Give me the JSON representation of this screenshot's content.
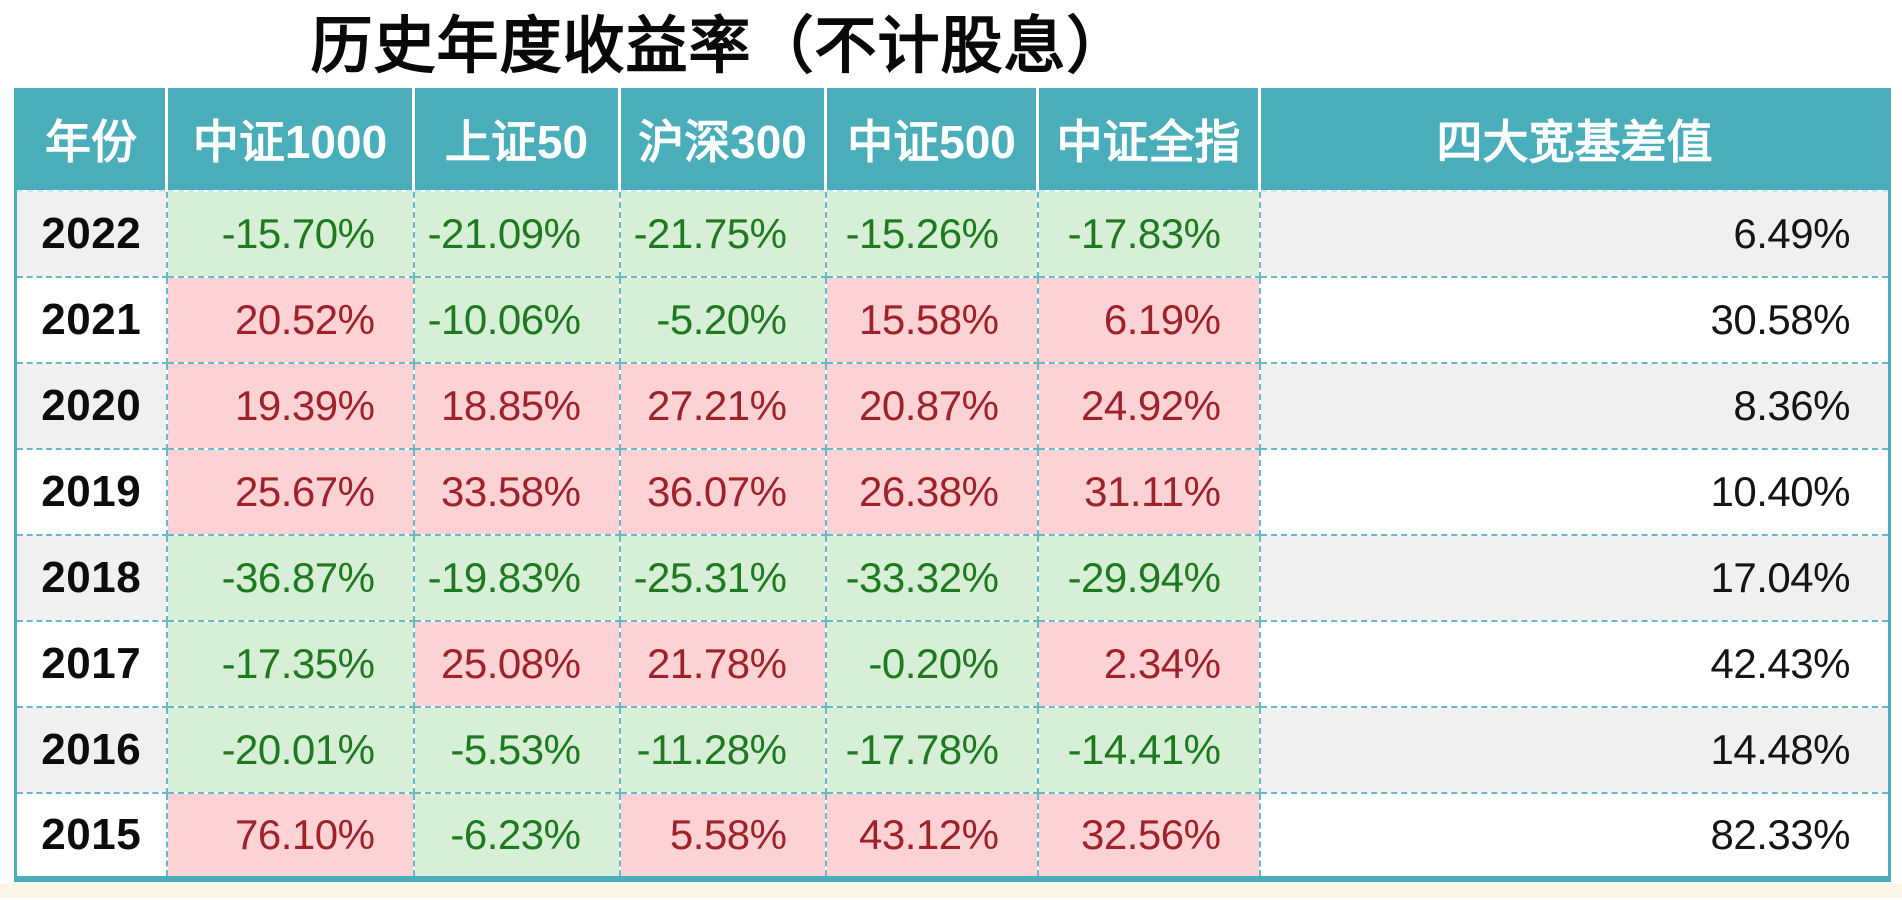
{
  "title": "历史年度收益率（不计股息）",
  "colors": {
    "header_bg": "#4aadba",
    "header_text": "#ffffff",
    "table_edge": "#4aadba",
    "grid_border": "#66b9c8",
    "negative_bg": "#d7efd6",
    "negative_text": "#1e7a1f",
    "positive_bg": "#fdd2d5",
    "positive_text": "#9e2228",
    "row_alt_bg": "#f0f0f0",
    "row_bg": "#ffffff",
    "footer_strip": "#faf5e7"
  },
  "chart_data": {
    "type": "table",
    "title": "历史年度收益率（不计股息）",
    "columns": [
      "年份",
      "中证1000",
      "上证50",
      "沪深300",
      "中证500",
      "中证全指",
      "四大宽基差值"
    ],
    "rows": [
      [
        "2022",
        "-15.70%",
        "-21.09%",
        "-21.75%",
        "-15.26%",
        "-17.83%",
        "6.49%"
      ],
      [
        "2021",
        "20.52%",
        "-10.06%",
        "-5.20%",
        "15.58%",
        "6.19%",
        "30.58%"
      ],
      [
        "2020",
        "19.39%",
        "18.85%",
        "27.21%",
        "20.87%",
        "24.92%",
        "8.36%"
      ],
      [
        "2019",
        "25.67%",
        "33.58%",
        "36.07%",
        "26.38%",
        "31.11%",
        "10.40%"
      ],
      [
        "2018",
        "-36.87%",
        "-19.83%",
        "-25.31%",
        "-33.32%",
        "-29.94%",
        "17.04%"
      ],
      [
        "2017",
        "-17.35%",
        "25.08%",
        "21.78%",
        "-0.20%",
        "2.34%",
        "42.43%"
      ],
      [
        "2016",
        "-20.01%",
        "-5.53%",
        "-11.28%",
        "-17.78%",
        "-14.41%",
        "14.48%"
      ],
      [
        "2015",
        "76.10%",
        "-6.23%",
        "5.58%",
        "43.12%",
        "32.56%",
        "82.33%"
      ]
    ],
    "legend": {
      "positive_style": "pink background, dark red text",
      "negative_style": "light green background, dark green text",
      "diff_column_style": "black text, alternating white / light gray rows"
    }
  }
}
